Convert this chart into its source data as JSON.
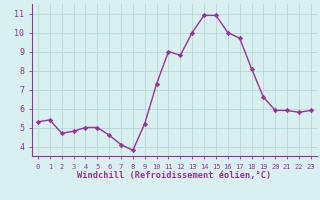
{
  "x": [
    0,
    1,
    2,
    3,
    4,
    5,
    6,
    7,
    8,
    9,
    10,
    11,
    12,
    13,
    14,
    15,
    16,
    17,
    18,
    19,
    20,
    21,
    22,
    23
  ],
  "y": [
    5.3,
    5.4,
    4.7,
    4.8,
    5.0,
    5.0,
    4.6,
    4.1,
    3.8,
    5.2,
    7.3,
    9.0,
    8.8,
    10.0,
    10.9,
    10.9,
    10.0,
    9.7,
    8.1,
    6.6,
    5.9,
    5.9,
    5.8,
    5.9
  ],
  "line_color": "#993399",
  "marker": "D",
  "marker_size": 2.2,
  "line_width": 1.0,
  "bg_color": "#d8f0f0",
  "grid_color": "#b8d8d8",
  "xlabel": "Windchill (Refroidissement éolien,°C)",
  "xlabel_color": "#993399",
  "tick_color": "#993399",
  "ylabel_ticks": [
    4,
    5,
    6,
    7,
    8,
    9,
    10,
    11
  ],
  "xlim": [
    -0.5,
    23.5
  ],
  "ylim": [
    3.5,
    11.5
  ],
  "xtick_fontsize": 5.0,
  "ytick_fontsize": 6.0,
  "xlabel_fontsize": 6.2
}
